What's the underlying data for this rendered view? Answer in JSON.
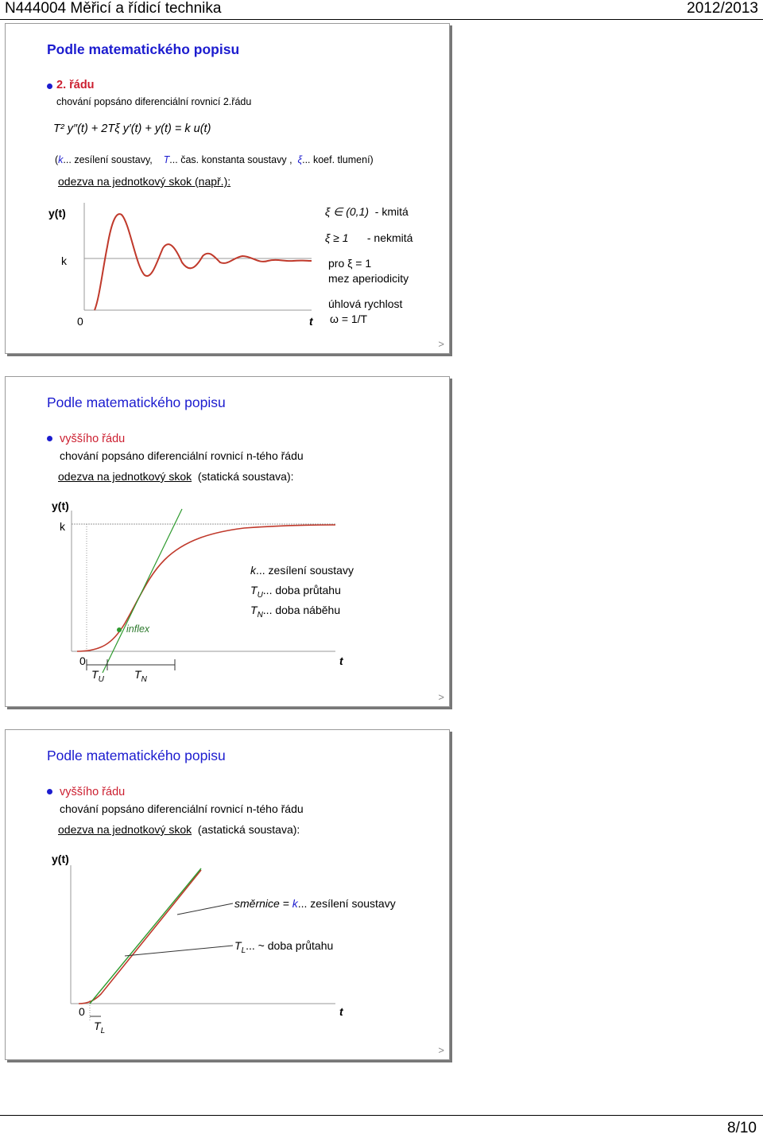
{
  "header": {
    "left": "N444004 Měřicí a řídicí technika",
    "right": "2012/2013"
  },
  "page": "8/10",
  "slide1": {
    "title": "Podle matematického popisu",
    "bullet": "2. řádu",
    "line1": "chování popsáno diferenciální rovnicí 2.řádu",
    "equation": "T² y″(t) + 2Tξ y′(t) + y(t) = k u(t)",
    "legend_k": "k",
    "legend_k_text": "... zesílení soustavy,",
    "legend_T": "T",
    "legend_T_text": "... čas. konstanta soustavy ,",
    "legend_xi": "ξ",
    "legend_xi_text": "... koef. tlumení)",
    "paren_open": "(",
    "response": "odezva na jednotkový skok (např.):",
    "ylabel": "y(t)",
    "klabel": "k",
    "zero": "0",
    "tlabel": "t",
    "cond1_sym": "ξ ∈ (0,1)",
    "cond1_text": "- kmitá",
    "cond2_sym": "ξ ≥ 1",
    "cond2_text": "- nekmitá",
    "pro": "pro ξ = 1",
    "mez": "mez aperiodicity",
    "uhl": "úhlová rychlost",
    "omega": "ω = 1/T",
    "nav": ">"
  },
  "slide2": {
    "title": "Podle matematického popisu",
    "bullet": "vyššího řádu",
    "line1": "chování popsáno diferenciální rovnicí n-tého řádu",
    "response_u": "odezva na jednotkový skok",
    "response_rest": "(statická soustava):",
    "ylabel": "y(t)",
    "klabel": "k",
    "zero": "0",
    "tlabel": "t",
    "inflex": "inflex",
    "tu": "T",
    "tu_sub": "U",
    "tn": "T",
    "tn_sub": "N",
    "leg1_k": "k",
    "leg1": "... zesílení soustavy",
    "leg2": "... doba průtahu",
    "leg3": "... doba náběhu",
    "nav": ">"
  },
  "slide3": {
    "title": "Podle matematického popisu",
    "bullet": "vyššího řádu",
    "line1": "chování popsáno diferenciální rovnicí n-tého řádu",
    "response_u": "odezva na jednotkový skok",
    "response_rest": "(astatická soustava):",
    "ylabel": "y(t)",
    "zero": "0",
    "tlabel": "t",
    "smernice": "směrnice = ",
    "smernice_k": "k",
    "smernice_rest": "... zesílení soustavy",
    "tl": "T",
    "tl_sub": "L",
    "tl_text": "... ~ doba průtahu",
    "nav": ">"
  }
}
